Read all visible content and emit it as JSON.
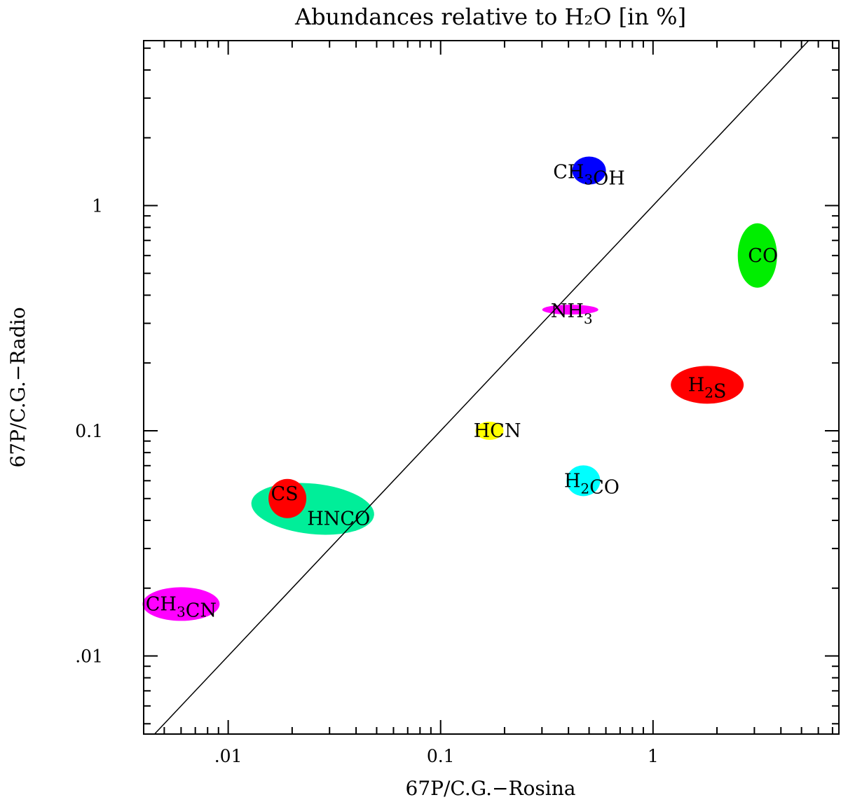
{
  "chart_data": {
    "type": "scatter",
    "title": "Abundances relative to H₂O [in %]",
    "xlabel": "67P/C.G.−Rosina",
    "ylabel": "67P/C.G.−Radio",
    "x_scale": "log",
    "y_scale": "log",
    "xlim": [
      0.004,
      7.5
    ],
    "ylim": [
      0.0045,
      5.4
    ],
    "x_ticks": [
      {
        "value": 0.01,
        "label": ".01"
      },
      {
        "value": 0.1,
        "label": "0.1"
      },
      {
        "value": 1,
        "label": "1"
      }
    ],
    "y_ticks": [
      {
        "value": 0.01,
        "label": ".01"
      },
      {
        "value": 0.1,
        "label": "0.1"
      },
      {
        "value": 1,
        "label": "1"
      }
    ],
    "reference_line": "y = x",
    "grid": false,
    "legend": "none",
    "points": [
      {
        "label": "CH₃OH",
        "x": 0.5,
        "y": 1.43,
        "color": "#0000ff"
      },
      {
        "label": "CO",
        "x": 3.1,
        "y": 0.6,
        "color": "#00ee00"
      },
      {
        "label": "NH₃",
        "x": 0.43,
        "y": 0.345,
        "color": "#ff00ff"
      },
      {
        "label": "H₂S",
        "x": 1.8,
        "y": 0.16,
        "color": "#ff0000"
      },
      {
        "label": "HCN",
        "x": 0.17,
        "y": 0.1,
        "color": "#ffff00"
      },
      {
        "label": "H₂CO",
        "x": 0.47,
        "y": 0.06,
        "color": "#00ffff"
      },
      {
        "label": "CS",
        "x": 0.019,
        "y": 0.05,
        "color": "#ff0000"
      },
      {
        "label": "HNCO",
        "x": 0.025,
        "y": 0.045,
        "color": "#00ee99"
      },
      {
        "label": "CH₃CN",
        "x": 0.006,
        "y": 0.017,
        "color": "#ff00ff"
      }
    ]
  }
}
